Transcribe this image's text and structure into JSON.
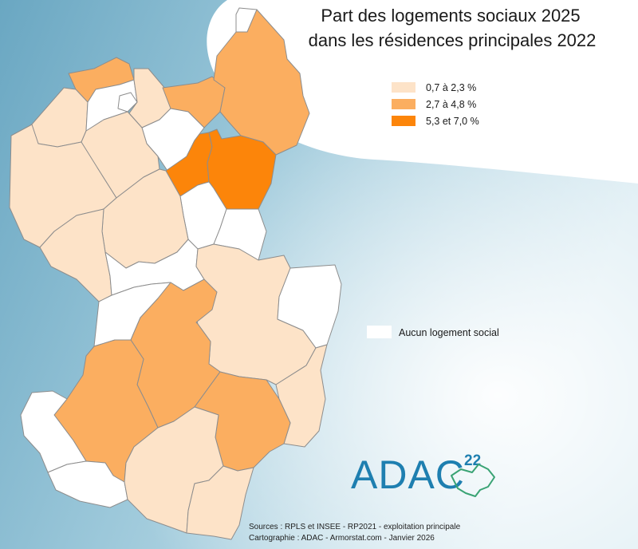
{
  "title_lines": [
    "Part des logements sociaux 2025",
    "dans les résidences principales 2022"
  ],
  "legend": [
    {
      "label": "0,7 à 2,3 %",
      "color": "#fde3c8"
    },
    {
      "label": "2,7 à 4,8 %",
      "color": "#fbae60"
    },
    {
      "label": "5,3 et 7,0 %",
      "color": "#fc850a"
    }
  ],
  "no_data_legend": {
    "label": "Aucun logement social",
    "color": "#ffffff"
  },
  "sources": [
    "Sources : RPLS et INSEE - RP2021 - exploitation principale",
    "Cartographie : ADAC - Armorstat.com - Janvier 2026"
  ],
  "logo": {
    "text": "ADAC",
    "superscript": "22"
  },
  "colors": {
    "sea": "#7fb6cc",
    "low": "#fde3c8",
    "mid": "#fbae60",
    "high": "#fc850a",
    "none": "#ffffff",
    "border": "#8d8d8d",
    "logo_blue": "#1e7fb0",
    "logo_green": "#3aa374"
  }
}
